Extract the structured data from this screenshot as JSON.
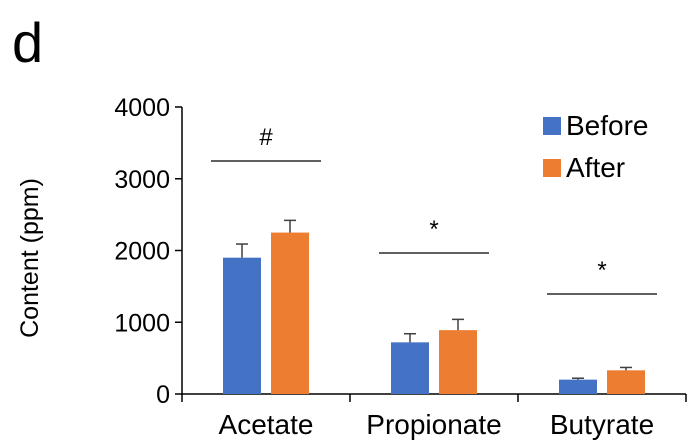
{
  "panel_label": "d",
  "colors": {
    "before": "#4472c4",
    "after": "#ed7d31",
    "axis": "#000000",
    "error": "#404040"
  },
  "chart_data": {
    "type": "bar",
    "ylabel": "Content (ppm)",
    "ylim": [
      0,
      4000
    ],
    "yticks": [
      0,
      1000,
      2000,
      3000,
      4000
    ],
    "categories": [
      "Acetate",
      "Propionate",
      "Butyrate"
    ],
    "series": [
      {
        "name": "Before",
        "values": [
          1900,
          720,
          200
        ],
        "errors": [
          190,
          120,
          20
        ]
      },
      {
        "name": "After",
        "values": [
          2250,
          890,
          330
        ],
        "errors": [
          170,
          150,
          40
        ]
      }
    ],
    "legend_position": "top-right",
    "grid": false,
    "significance": [
      {
        "category": "Acetate",
        "symbol": "#"
      },
      {
        "category": "Propionate",
        "symbol": "*"
      },
      {
        "category": "Butyrate",
        "symbol": "*"
      }
    ]
  }
}
